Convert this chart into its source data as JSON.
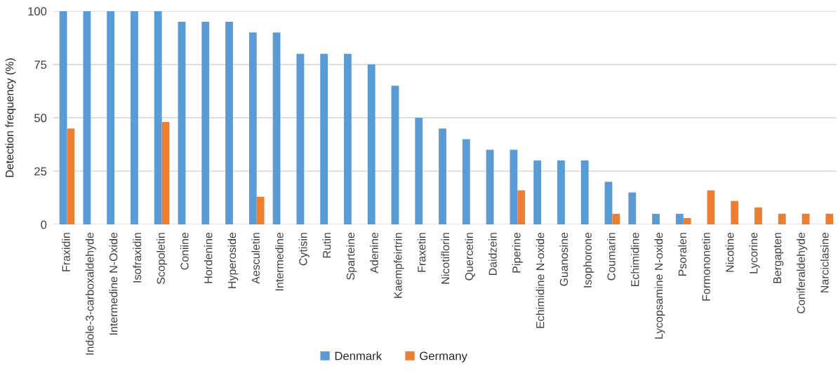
{
  "chart_data": {
    "type": "bar",
    "ylabel": "Detection frequency (%)",
    "categories": [
      "Fraxidin",
      "Indole-3-carboxaldehyde",
      "Intermedine N-Oxide",
      "Isofraxidin",
      "Scopoletin",
      "Coniine",
      "Hordenine",
      "Hyperoside",
      "Aesculetin",
      "Intermedine",
      "Cytisin",
      "Rutin",
      "Sparteine",
      "Adenine",
      "Kaempfeirtrin",
      "Fraxetin",
      "Nicotiflorin",
      "Quercetin",
      "Daidzein",
      "Piperine",
      "Echimidine N-oxide",
      "Guanosine",
      "Isophorone",
      "Coumarin",
      "Echimidine",
      "Lycopsamine N-oxide",
      "Psoralen",
      "Formononetin",
      "Nicotine",
      "Lycorine",
      "Bergapten",
      "Coniferaldehyde",
      "Narciclasine"
    ],
    "series": [
      {
        "name": "Denmark",
        "color": "#5b9bd5",
        "values": [
          100,
          100,
          100,
          100,
          100,
          95,
          95,
          95,
          90,
          90,
          80,
          80,
          80,
          75,
          65,
          50,
          45,
          40,
          35,
          35,
          30,
          30,
          30,
          20,
          15,
          5,
          5,
          0,
          0,
          0,
          0,
          0,
          0
        ]
      },
      {
        "name": "Germany",
        "color": "#ed7d31",
        "values": [
          45,
          0,
          0,
          0,
          48,
          0,
          0,
          0,
          13,
          0,
          0,
          0,
          0,
          0,
          0,
          0,
          0,
          0,
          0,
          16,
          0,
          0,
          0,
          5,
          0,
          0,
          3,
          16,
          11,
          8,
          5,
          5,
          5
        ]
      }
    ],
    "ylim": [
      0,
      100
    ],
    "yticks": [
      0,
      25,
      50,
      75,
      100
    ],
    "grid": "y",
    "legend": "bottom"
  }
}
